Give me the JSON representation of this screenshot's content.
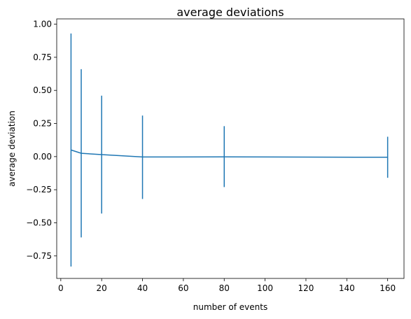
{
  "chart_data": {
    "type": "line",
    "title": "average deviations",
    "xlabel": "number of events",
    "ylabel": "average deviation",
    "xlim": [
      -2,
      168
    ],
    "ylim": [
      -0.92,
      1.04
    ],
    "xticks": [
      0,
      20,
      40,
      60,
      80,
      100,
      120,
      140,
      160
    ],
    "xtick_labels": [
      "0",
      "20",
      "40",
      "60",
      "80",
      "100",
      "120",
      "140",
      "160"
    ],
    "yticks": [
      -0.75,
      -0.5,
      -0.25,
      0.0,
      0.25,
      0.5,
      0.75,
      1.0
    ],
    "ytick_labels": [
      "−0.75",
      "−0.50",
      "−0.25",
      "0.00",
      "0.25",
      "0.50",
      "0.75",
      "1.00"
    ],
    "grid": false,
    "series": [
      {
        "color": "#1f77b4",
        "x": [
          5,
          10,
          20,
          40,
          80,
          160
        ],
        "y": [
          0.05,
          0.025,
          0.015,
          -0.003,
          -0.002,
          -0.005
        ],
        "error_low": [
          -0.83,
          -0.61,
          -0.43,
          -0.32,
          -0.23,
          -0.16
        ],
        "error_high": [
          0.93,
          0.66,
          0.46,
          0.31,
          0.23,
          0.15
        ]
      }
    ]
  }
}
